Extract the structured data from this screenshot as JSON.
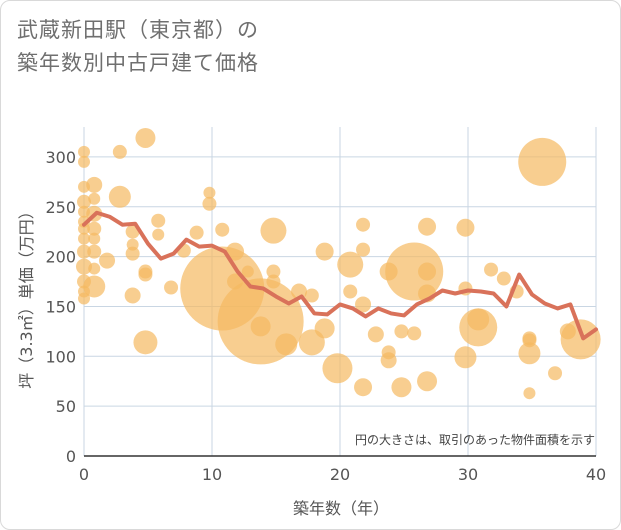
{
  "title_line1": "武蔵新田駅（東京都）の",
  "title_line2": "築年数別中古戸建て価格",
  "chart_data": {
    "type": "scatter",
    "xlabel": "築年数（年）",
    "ylabel": "坪（3.3㎡）単価（万円）",
    "xlim": [
      0,
      40
    ],
    "ylim": [
      0,
      330
    ],
    "xticks": [
      0,
      10,
      20,
      30,
      40
    ],
    "yticks": [
      0,
      50,
      100,
      150,
      200,
      250,
      300
    ],
    "annotation": "円の大きさは、取引のあった物件面積を示す",
    "colors": {
      "bubble": "#f5b961",
      "line": "#d9725a",
      "grid": "#c9d6e3"
    },
    "scatter": [
      {
        "x": 0,
        "y": 305,
        "s": 6
      },
      {
        "x": 0,
        "y": 295,
        "s": 6
      },
      {
        "x": 0,
        "y": 270,
        "s": 6
      },
      {
        "x": 0,
        "y": 255,
        "s": 7
      },
      {
        "x": 0,
        "y": 245,
        "s": 6
      },
      {
        "x": 0,
        "y": 235,
        "s": 6
      },
      {
        "x": 0,
        "y": 228,
        "s": 6
      },
      {
        "x": 0,
        "y": 218,
        "s": 6
      },
      {
        "x": 0,
        "y": 205,
        "s": 7
      },
      {
        "x": 0,
        "y": 190,
        "s": 8
      },
      {
        "x": 0,
        "y": 175,
        "s": 7
      },
      {
        "x": 0,
        "y": 165,
        "s": 6
      },
      {
        "x": 0,
        "y": 158,
        "s": 6
      },
      {
        "x": 0.8,
        "y": 272,
        "s": 8
      },
      {
        "x": 0.8,
        "y": 258,
        "s": 6
      },
      {
        "x": 0.8,
        "y": 243,
        "s": 8
      },
      {
        "x": 0.8,
        "y": 228,
        "s": 7
      },
      {
        "x": 0.8,
        "y": 218,
        "s": 6
      },
      {
        "x": 0.8,
        "y": 205,
        "s": 7
      },
      {
        "x": 0.8,
        "y": 188,
        "s": 6
      },
      {
        "x": 0.8,
        "y": 170,
        "s": 11
      },
      {
        "x": 1.8,
        "y": 196,
        "s": 8
      },
      {
        "x": 2.8,
        "y": 305,
        "s": 7
      },
      {
        "x": 2.8,
        "y": 260,
        "s": 11
      },
      {
        "x": 3.8,
        "y": 225,
        "s": 7
      },
      {
        "x": 3.8,
        "y": 212,
        "s": 6
      },
      {
        "x": 3.8,
        "y": 203,
        "s": 7
      },
      {
        "x": 3.8,
        "y": 161,
        "s": 8
      },
      {
        "x": 4.8,
        "y": 319,
        "s": 10
      },
      {
        "x": 4.8,
        "y": 185,
        "s": 7
      },
      {
        "x": 4.8,
        "y": 182,
        "s": 7
      },
      {
        "x": 4.8,
        "y": 114,
        "s": 12
      },
      {
        "x": 5.8,
        "y": 236,
        "s": 7
      },
      {
        "x": 5.8,
        "y": 222,
        "s": 6
      },
      {
        "x": 6.8,
        "y": 169,
        "s": 7
      },
      {
        "x": 7.8,
        "y": 206,
        "s": 7
      },
      {
        "x": 8.8,
        "y": 224,
        "s": 7
      },
      {
        "x": 9.8,
        "y": 264,
        "s": 6
      },
      {
        "x": 9.8,
        "y": 253,
        "s": 7
      },
      {
        "x": 10.8,
        "y": 227,
        "s": 7
      },
      {
        "x": 10.8,
        "y": 168,
        "s": 42
      },
      {
        "x": 11.8,
        "y": 205,
        "s": 9
      },
      {
        "x": 11.8,
        "y": 175,
        "s": 8
      },
      {
        "x": 12.8,
        "y": 185,
        "s": 6
      },
      {
        "x": 13.8,
        "y": 130,
        "s": 10
      },
      {
        "x": 13.8,
        "y": 135,
        "s": 43
      },
      {
        "x": 14.8,
        "y": 226,
        "s": 13
      },
      {
        "x": 14.8,
        "y": 185,
        "s": 7
      },
      {
        "x": 14.8,
        "y": 175,
        "s": 7
      },
      {
        "x": 15.8,
        "y": 112,
        "s": 11
      },
      {
        "x": 16.8,
        "y": 165,
        "s": 8
      },
      {
        "x": 17.8,
        "y": 114,
        "s": 13
      },
      {
        "x": 17.8,
        "y": 161,
        "s": 7
      },
      {
        "x": 18.8,
        "y": 205,
        "s": 9
      },
      {
        "x": 18.8,
        "y": 128,
        "s": 10
      },
      {
        "x": 19.8,
        "y": 88,
        "s": 15
      },
      {
        "x": 20.8,
        "y": 192,
        "s": 13
      },
      {
        "x": 20.8,
        "y": 165,
        "s": 7
      },
      {
        "x": 21.8,
        "y": 232,
        "s": 7
      },
      {
        "x": 21.8,
        "y": 207,
        "s": 7
      },
      {
        "x": 21.8,
        "y": 152,
        "s": 8
      },
      {
        "x": 21.8,
        "y": 69,
        "s": 9
      },
      {
        "x": 22.8,
        "y": 122,
        "s": 8
      },
      {
        "x": 23.8,
        "y": 185,
        "s": 9
      },
      {
        "x": 23.8,
        "y": 104,
        "s": 7
      },
      {
        "x": 23.8,
        "y": 96,
        "s": 8
      },
      {
        "x": 24.8,
        "y": 125,
        "s": 7
      },
      {
        "x": 24.8,
        "y": 69,
        "s": 10
      },
      {
        "x": 25.8,
        "y": 185,
        "s": 29
      },
      {
        "x": 25.8,
        "y": 123,
        "s": 7
      },
      {
        "x": 26.8,
        "y": 230,
        "s": 9
      },
      {
        "x": 26.8,
        "y": 185,
        "s": 9
      },
      {
        "x": 26.8,
        "y": 163,
        "s": 9
      },
      {
        "x": 26.8,
        "y": 75,
        "s": 10
      },
      {
        "x": 29.8,
        "y": 229,
        "s": 9
      },
      {
        "x": 29.8,
        "y": 168,
        "s": 7
      },
      {
        "x": 29.8,
        "y": 99,
        "s": 11
      },
      {
        "x": 30.8,
        "y": 137,
        "s": 11
      },
      {
        "x": 30.8,
        "y": 129,
        "s": 19
      },
      {
        "x": 31.8,
        "y": 187,
        "s": 7
      },
      {
        "x": 32.8,
        "y": 178,
        "s": 7
      },
      {
        "x": 33.8,
        "y": 165,
        "s": 7
      },
      {
        "x": 34.8,
        "y": 118,
        "s": 7
      },
      {
        "x": 34.8,
        "y": 116,
        "s": 7
      },
      {
        "x": 34.8,
        "y": 103,
        "s": 11
      },
      {
        "x": 34.8,
        "y": 63,
        "s": 6
      },
      {
        "x": 35.8,
        "y": 295,
        "s": 24
      },
      {
        "x": 36.8,
        "y": 83,
        "s": 7
      },
      {
        "x": 37.8,
        "y": 125,
        "s": 8
      },
      {
        "x": 38.8,
        "y": 117,
        "s": 20
      }
    ],
    "line": {
      "x": [
        0,
        1,
        2,
        3,
        4,
        5,
        6,
        7,
        8,
        9,
        10,
        11,
        12,
        13,
        14,
        15,
        16,
        17,
        18,
        19,
        20,
        21,
        22,
        23,
        24,
        25,
        26,
        27,
        28,
        29,
        30,
        31,
        32,
        33,
        34,
        35,
        36,
        37,
        38,
        39,
        40
      ],
      "y": [
        232,
        244,
        240,
        232,
        233,
        213,
        198,
        203,
        217,
        210,
        211,
        205,
        185,
        170,
        168,
        160,
        153,
        160,
        143,
        142,
        152,
        148,
        140,
        148,
        143,
        141,
        152,
        158,
        166,
        163,
        166,
        165,
        163,
        150,
        182,
        162,
        153,
        148,
        152,
        118,
        127
      ]
    }
  }
}
